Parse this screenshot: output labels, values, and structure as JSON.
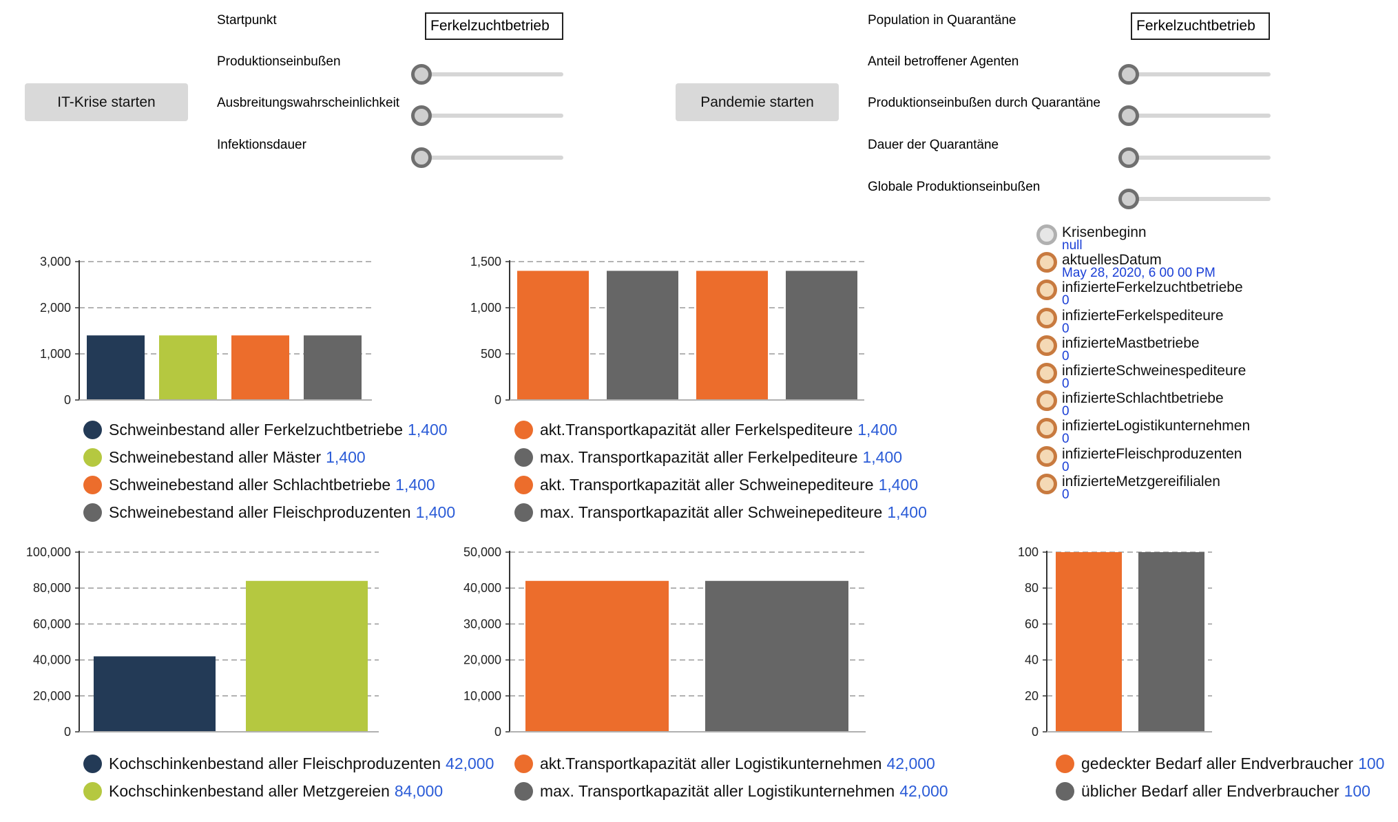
{
  "it_crisis": {
    "button": "IT-Krise starten",
    "params": [
      {
        "label": "Startpunkt",
        "control": "dropdown",
        "value": "Ferkelzuchtbetrieb"
      },
      {
        "label": "Produktionseinbußen",
        "control": "slider",
        "value": 0
      },
      {
        "label": "Ausbreitungswahrscheinlichkeit",
        "control": "slider",
        "value": 0
      },
      {
        "label": "Infektionsdauer",
        "control": "slider",
        "value": 0
      }
    ]
  },
  "pandemic": {
    "button": "Pandemie starten",
    "params": [
      {
        "label": "Population in Quarantäne",
        "control": "dropdown",
        "value": "Ferkelzuchtbetrieb"
      },
      {
        "label": "Anteil betroffener Agenten",
        "control": "slider",
        "value": 0
      },
      {
        "label": "Produktionseinbußen durch Quarantäne",
        "control": "slider",
        "value": 0
      },
      {
        "label": "Dauer der Quarantäne",
        "control": "slider",
        "value": 0
      },
      {
        "label": "Globale Produktionseinbußen",
        "control": "slider",
        "value": 0
      }
    ]
  },
  "variables": [
    {
      "name": "Krisenbeginn",
      "value": "null",
      "style": "grey"
    },
    {
      "name": "aktuellesDatum",
      "value": "May 28, 2020, 6 00 00 PM",
      "style": "orange"
    },
    {
      "name": "infizierteFerkelzuchtbetriebe",
      "value": "0",
      "style": "orange"
    },
    {
      "name": "infizierteFerkelspediteure",
      "value": "0",
      "style": "orange"
    },
    {
      "name": "infizierteMastbetriebe",
      "value": "0",
      "style": "orange"
    },
    {
      "name": "infizierteSchweinespediteure",
      "value": "0",
      "style": "orange"
    },
    {
      "name": "infizierteSchlachtbetriebe",
      "value": "0",
      "style": "orange"
    },
    {
      "name": "infizierteLogistikunternehmen",
      "value": "0",
      "style": "orange"
    },
    {
      "name": "infizierteFleischproduzenten",
      "value": "0",
      "style": "orange"
    },
    {
      "name": "infizierteMetzgereifilialen",
      "value": "0",
      "style": "orange"
    }
  ],
  "colors": {
    "navy": "#233a56",
    "green": "#b5c840",
    "orange": "#ec6d2c",
    "grey": "#666666",
    "value_blue": "#2a5bd7"
  },
  "chart_data": [
    {
      "type": "bar",
      "ylim": [
        0,
        3000
      ],
      "yticks": [
        "0",
        "1,000",
        "2,000",
        "3,000"
      ],
      "series": [
        {
          "name": "Schweinbestand aller Ferkelzuchtbetriebe",
          "value": 1400,
          "value_label": "1,400",
          "color": "#233a56"
        },
        {
          "name": "Schweinebestand aller Mäster",
          "value": 1400,
          "value_label": "1,400",
          "color": "#b5c840"
        },
        {
          "name": "Schweinebestand aller Schlachtbetriebe",
          "value": 1400,
          "value_label": "1,400",
          "color": "#ec6d2c"
        },
        {
          "name": "Schweinebestand aller Fleischproduzenten",
          "value": 1400,
          "value_label": "1,400",
          "color": "#666666"
        }
      ],
      "grid": true
    },
    {
      "type": "bar",
      "ylim": [
        0,
        1500
      ],
      "yticks": [
        "0",
        "500",
        "1,000",
        "1,500"
      ],
      "series": [
        {
          "name": "akt.Transportkapazität aller Ferkelspediteure",
          "value": 1400,
          "value_label": "1,400",
          "color": "#ec6d2c"
        },
        {
          "name": "max. Transportkapazität aller Ferkelpediteure",
          "value": 1400,
          "value_label": "1,400",
          "color": "#666666"
        },
        {
          "name": "akt. Transportkapazität aller Schweinepediteure",
          "value": 1400,
          "value_label": "1,400",
          "color": "#ec6d2c"
        },
        {
          "name": "max. Transportkapazität aller Schweinepediteure",
          "value": 1400,
          "value_label": "1,400",
          "color": "#666666"
        }
      ],
      "grid": true
    },
    {
      "type": "bar",
      "ylim": [
        0,
        100000
      ],
      "yticks": [
        "0",
        "20,000",
        "40,000",
        "60,000",
        "80,000",
        "100,000"
      ],
      "series": [
        {
          "name": "Kochschinkenbestand aller Fleischproduzenten",
          "value": 42000,
          "value_label": "42,000",
          "color": "#233a56"
        },
        {
          "name": "Kochschinkenbestand aller Metzgereien",
          "value": 84000,
          "value_label": "84,000",
          "color": "#b5c840"
        }
      ],
      "grid": true
    },
    {
      "type": "bar",
      "ylim": [
        0,
        50000
      ],
      "yticks": [
        "0",
        "10,000",
        "20,000",
        "30,000",
        "40,000",
        "50,000"
      ],
      "series": [
        {
          "name": "akt.Transportkapazität aller Logistikunternehmen",
          "value": 42000,
          "value_label": "42,000",
          "color": "#ec6d2c"
        },
        {
          "name": "max. Transportkapazität aller Logistikunternehmen",
          "value": 42000,
          "value_label": "42,000",
          "color": "#666666"
        }
      ],
      "grid": true
    },
    {
      "type": "bar",
      "ylim": [
        0,
        100
      ],
      "yticks": [
        "0",
        "20",
        "40",
        "60",
        "80",
        "100"
      ],
      "series": [
        {
          "name": "gedeckter Bedarf aller Endverbraucher",
          "value": 100,
          "value_label": "100",
          "color": "#ec6d2c"
        },
        {
          "name": "üblicher Bedarf aller Endverbraucher",
          "value": 100,
          "value_label": "100",
          "color": "#666666"
        }
      ],
      "grid": true
    }
  ]
}
